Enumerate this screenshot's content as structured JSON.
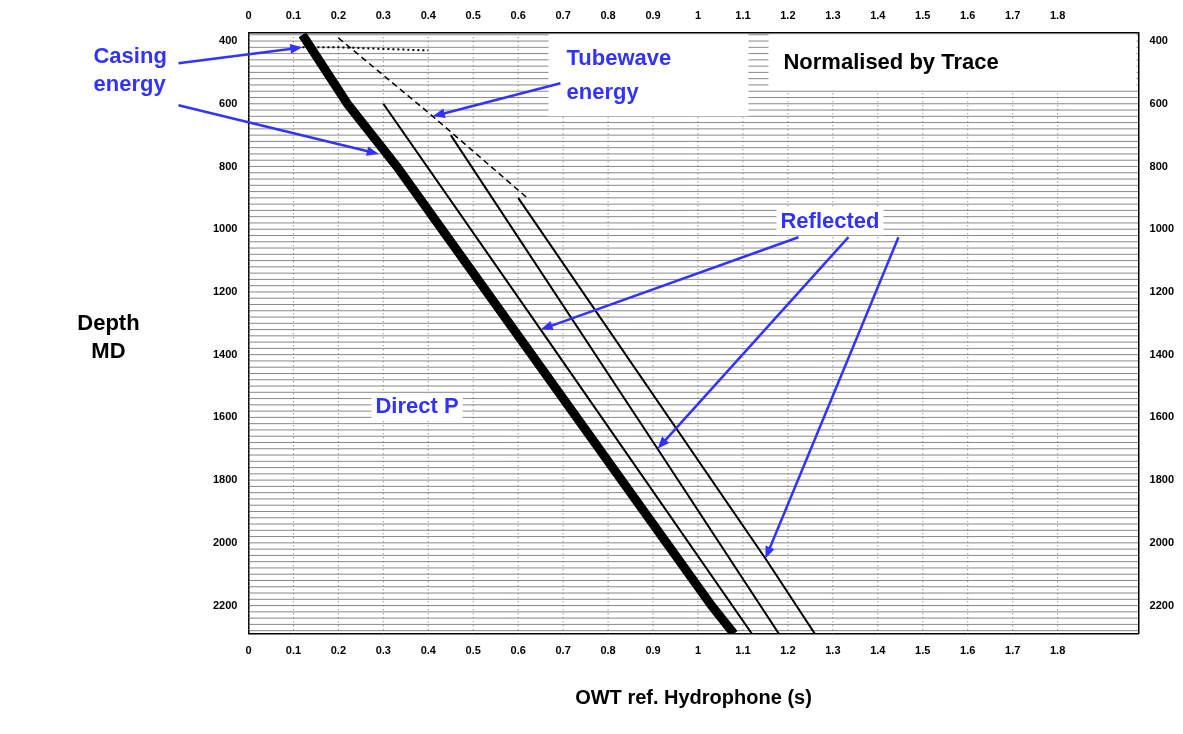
{
  "chart_data": {
    "type": "line",
    "x_label": "OWT ref. Hydrophone (s)",
    "y_label": "Depth MD",
    "xlim": [
      0,
      1.98
    ],
    "ylim": [
      2290,
      375
    ],
    "xticks": [
      0,
      0.1,
      0.2,
      0.3,
      0.4,
      0.5,
      0.6,
      0.7,
      0.8,
      0.9,
      1,
      1.1,
      1.2,
      1.3,
      1.4,
      1.5,
      1.6,
      1.7,
      1.8
    ],
    "yticks": [
      400,
      600,
      800,
      1000,
      1200,
      1400,
      1600,
      1800,
      2000,
      2200
    ],
    "grid": true,
    "trace_depths": [
      380,
      400,
      420,
      440,
      460,
      480,
      500,
      520,
      540,
      560,
      580,
      600,
      620,
      640,
      660,
      680,
      700,
      720,
      740,
      760,
      780,
      800,
      820,
      840,
      860,
      880,
      900,
      920,
      940,
      960,
      980,
      1000,
      1020,
      1040,
      1060,
      1080,
      1100,
      1120,
      1140,
      1160,
      1180,
      1200,
      1220,
      1240,
      1260,
      1280,
      1300,
      1320,
      1340,
      1360,
      1380,
      1400,
      1420,
      1440,
      1460,
      1480,
      1500,
      1520,
      1540,
      1560,
      1580,
      1600,
      1620,
      1640,
      1660,
      1680,
      1700,
      1720,
      1740,
      1760,
      1780,
      1800,
      1820,
      1840,
      1860,
      1880,
      1900,
      1920,
      1940,
      1960,
      1980,
      2000,
      2020,
      2040,
      2060,
      2080,
      2100,
      2120,
      2140,
      2160,
      2180,
      2200,
      2220,
      2240,
      2260,
      2280
    ],
    "series": [
      {
        "x": [
          0.12,
          0.22,
          0.33,
          0.43,
          0.53,
          0.63,
          0.73,
          0.83,
          0.93,
          1.03,
          1.08
        ],
        "y": [
          380,
          600,
          800,
          1000,
          1200,
          1400,
          1600,
          1800,
          2000,
          2200,
          2290
        ],
        "color": "#000000",
        "line_style": "heavy"
      },
      {
        "x": [
          0.12,
          0.2,
          0.3,
          0.4
        ],
        "y": [
          420,
          420,
          425,
          430
        ],
        "color": "#000000",
        "line_style": "dotted"
      },
      {
        "x": [
          0.2,
          0.41,
          0.62
        ],
        "y": [
          390,
          640,
          900
        ],
        "color": "#000000",
        "line_style": "dashed"
      },
      {
        "x": [
          0.3,
          0.65,
          1.12
        ],
        "y": [
          600,
          1320,
          2290
        ],
        "color": "#000000",
        "line_style": "solid"
      },
      {
        "x": [
          0.45,
          0.91,
          1.18
        ],
        "y": [
          700,
          1700,
          2290
        ],
        "color": "#000000",
        "line_style": "solid"
      },
      {
        "x": [
          0.6,
          1.15,
          1.26
        ],
        "y": [
          900,
          2050,
          2290
        ],
        "color": "#000000",
        "line_style": "solid"
      }
    ],
    "annotations": [
      {
        "text": "Casing energy",
        "color": "#3333ff",
        "points": [
          [
            0.12,
            420
          ],
          [
            0.29,
            760
          ]
        ]
      },
      {
        "text": "Tubewave energy",
        "color": "#3333ff",
        "points": [
          [
            0.41,
            640
          ]
        ]
      },
      {
        "text": "Reflected",
        "color": "#3333ff",
        "points": [
          [
            0.65,
            1320
          ],
          [
            0.91,
            1700
          ],
          [
            1.15,
            2050
          ]
        ]
      },
      {
        "text": "Direct P",
        "color": "#3333ff"
      },
      {
        "text": "Normalised by Trace",
        "color": "#000000"
      }
    ]
  }
}
